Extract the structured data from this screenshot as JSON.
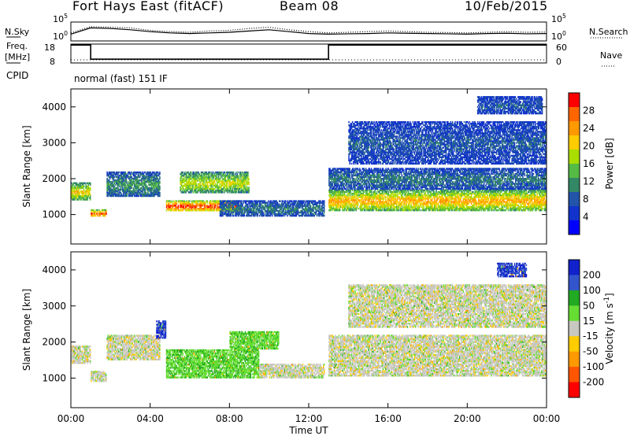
{
  "header": {
    "station": "Fort Hays East (fitACF)",
    "beam": "Beam 08",
    "date": "10/Feb/2015"
  },
  "chart_data": [
    {
      "type": "line",
      "panel": "noise",
      "left_label": "N.Sky",
      "right_label": "N.Search",
      "left_ticks": [
        "10^5",
        "10^0"
      ],
      "right_ticks": [
        "10^5",
        "10^0"
      ],
      "series": [
        {
          "name": "N.Sky",
          "style": "solid"
        },
        {
          "name": "N.Search",
          "style": "dotted"
        }
      ],
      "x": [
        "00:00",
        "01:00",
        "02:00",
        "03:00",
        "04:00",
        "05:00",
        "06:00",
        "07:00",
        "08:00",
        "09:00",
        "10:00",
        "11:00",
        "12:00",
        "13:00",
        "14:00",
        "15:00",
        "16:00",
        "17:00",
        "18:00",
        "19:00",
        "20:00",
        "21:00",
        "22:00",
        "23:00",
        "24:00"
      ],
      "n_sky_rel": [
        0.35,
        0.85,
        0.8,
        0.7,
        0.55,
        0.45,
        0.4,
        0.45,
        0.5,
        0.6,
        0.7,
        0.55,
        0.4,
        0.35,
        0.38,
        0.4,
        0.45,
        0.42,
        0.4,
        0.38,
        0.35,
        0.4,
        0.42,
        0.38,
        0.4
      ],
      "n_search_rel": [
        0.45,
        0.95,
        0.9,
        0.85,
        0.65,
        0.55,
        0.5,
        0.6,
        0.65,
        0.8,
        0.9,
        0.7,
        0.55,
        0.45,
        0.5,
        0.55,
        0.6,
        0.55,
        0.5,
        0.48,
        0.45,
        0.5,
        0.55,
        0.5,
        0.52
      ]
    },
    {
      "type": "line",
      "panel": "frequency",
      "left_label": "Freq.",
      "left_unit": "[MHz]",
      "right_label": "Nave",
      "left_ticks": [
        "18",
        "8"
      ],
      "right_ticks": [
        "60",
        "0"
      ],
      "ylim_left": [
        8,
        18
      ],
      "ylim_right": [
        0,
        60
      ],
      "freq_steps": [
        {
          "from_h": 0,
          "to_h": 1.0,
          "value": 17.5
        },
        {
          "from_h": 1.0,
          "to_h": 13.0,
          "value": 10.0
        },
        {
          "from_h": 13.0,
          "to_h": 24.0,
          "value": 17.5
        }
      ],
      "nave": 10,
      "cpid_label": "CPID",
      "mode": "normal (fast) 151 IF"
    },
    {
      "type": "heatmap",
      "panel": "power",
      "ylabel": "Slant Range [km]",
      "yticks": [
        1000,
        2000,
        3000,
        4000
      ],
      "ylim": [
        180,
        4500
      ],
      "xlim_h": [
        0,
        24
      ],
      "colorbar_label": "Power [dB]",
      "colorbar_ticks": [
        "28",
        "24",
        "20",
        "16",
        "12",
        "8",
        "4"
      ],
      "colorbar_colors": [
        "#ff0000",
        "#ff6600",
        "#ff9900",
        "#ffcc00",
        "#aadd00",
        "#55bb44",
        "#338866",
        "#2255aa",
        "#1133cc",
        "#0000ff"
      ],
      "echo_regions": [
        {
          "t0": 0.0,
          "t1": 1.0,
          "r0": 1400,
          "r1": 1900,
          "level": 18
        },
        {
          "t0": 1.0,
          "t1": 1.8,
          "r0": 950,
          "r1": 1150,
          "level": 24
        },
        {
          "t0": 1.8,
          "t1": 4.5,
          "r0": 1500,
          "r1": 2200,
          "level": 10
        },
        {
          "t0": 4.8,
          "t1": 8.5,
          "r0": 1100,
          "r1": 1400,
          "level": 26
        },
        {
          "t0": 5.5,
          "t1": 9.0,
          "r0": 1600,
          "r1": 2200,
          "level": 16
        },
        {
          "t0": 7.5,
          "t1": 12.8,
          "r0": 950,
          "r1": 1400,
          "level": 8
        },
        {
          "t0": 13.0,
          "t1": 24.0,
          "r0": 1100,
          "r1": 1700,
          "level": 20
        },
        {
          "t0": 13.0,
          "t1": 24.0,
          "r0": 1700,
          "r1": 2300,
          "level": 8
        },
        {
          "t0": 14.0,
          "t1": 24.0,
          "r0": 2400,
          "r1": 3600,
          "level": 6
        },
        {
          "t0": 20.5,
          "t1": 23.8,
          "r0": 3800,
          "r1": 4300,
          "level": 6
        }
      ]
    },
    {
      "type": "heatmap",
      "panel": "velocity",
      "ylabel": "Slant Range [km]",
      "yticks": [
        1000,
        2000,
        3000,
        4000
      ],
      "ylim": [
        180,
        4500
      ],
      "xlabel": "Time UT",
      "xticks": [
        "00:00",
        "04:00",
        "08:00",
        "12:00",
        "16:00",
        "20:00",
        "00:00"
      ],
      "colorbar_label": "Velocity [m s^-1]",
      "colorbar_ticks": [
        "200",
        "100",
        "50",
        "15",
        "-15",
        "-50",
        "-100",
        "-200"
      ],
      "colorbar_colors": [
        "#1122cc",
        "#3355cc",
        "#22aa22",
        "#66dd33",
        "#c8c8c0",
        "#ffcc00",
        "#ff9900",
        "#ff5500",
        "#ff0000"
      ],
      "echo_regions": [
        {
          "t0": 0.0,
          "t1": 1.0,
          "r0": 1400,
          "r1": 1900,
          "vel": 0
        },
        {
          "t0": 1.0,
          "t1": 1.8,
          "r0": 900,
          "r1": 1200,
          "vel": 0
        },
        {
          "t0": 1.8,
          "t1": 4.5,
          "r0": 1500,
          "r1": 2200,
          "vel": 0
        },
        {
          "t0": 4.3,
          "t1": 4.8,
          "r0": 2100,
          "r1": 2600,
          "vel": 200
        },
        {
          "t0": 4.8,
          "t1": 9.5,
          "r0": 1000,
          "r1": 1800,
          "vel": 40
        },
        {
          "t0": 8.0,
          "t1": 10.5,
          "r0": 1800,
          "r1": 2300,
          "vel": 40
        },
        {
          "t0": 9.5,
          "t1": 12.8,
          "r0": 1000,
          "r1": 1400,
          "vel": 0
        },
        {
          "t0": 13.0,
          "t1": 24.0,
          "r0": 1050,
          "r1": 2200,
          "vel": 0
        },
        {
          "t0": 14.0,
          "t1": 24.0,
          "r0": 2400,
          "r1": 3600,
          "vel": 0
        },
        {
          "t0": 21.5,
          "t1": 23.0,
          "r0": 3800,
          "r1": 4200,
          "vel": 200
        }
      ]
    }
  ]
}
